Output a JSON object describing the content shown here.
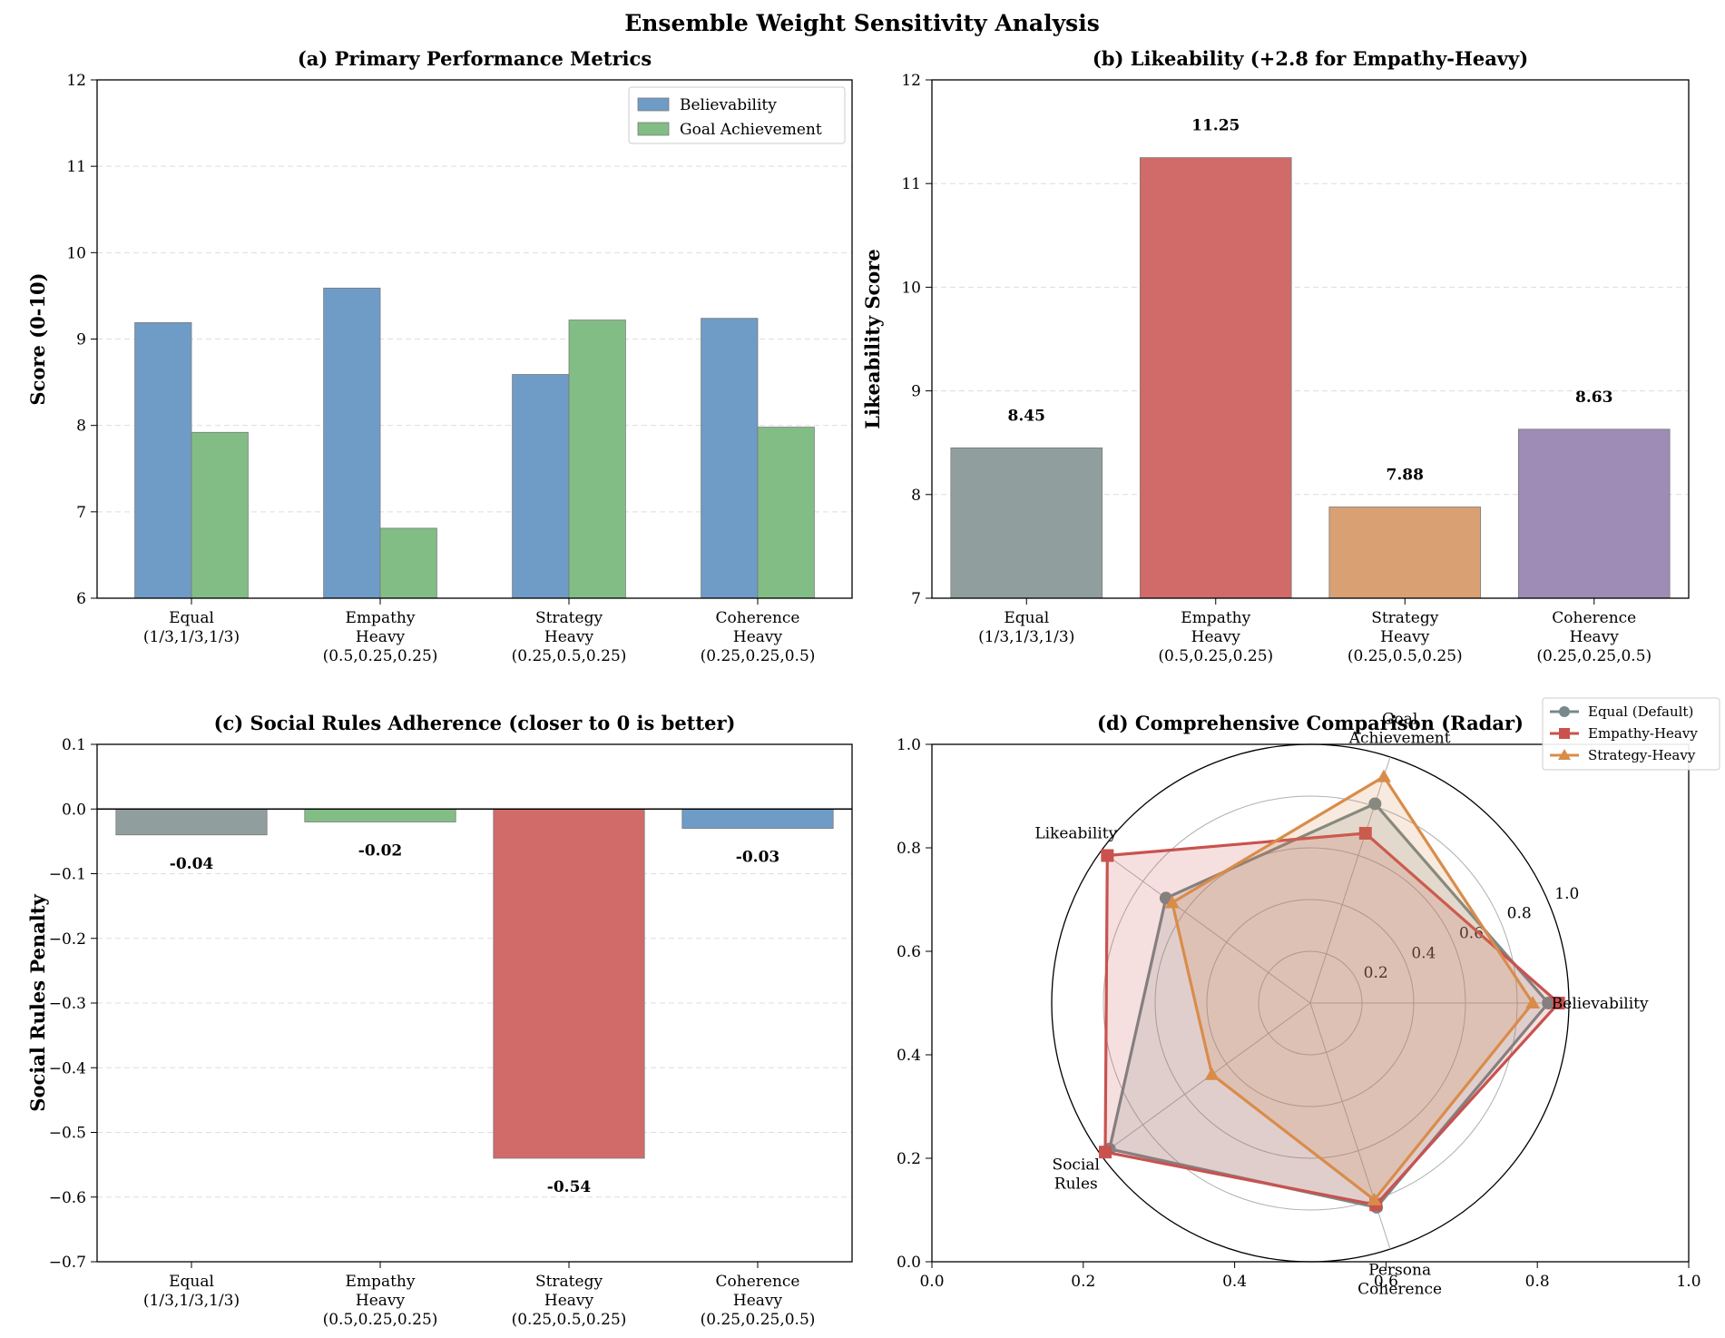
{
  "figure_title": "Ensemble Weight Sensitivity Analysis",
  "colors": {
    "blue": "#6f9bc7",
    "green": "#82bd85",
    "gray": "#909f9e",
    "red": "#d06b69",
    "orange": "#d9a074",
    "purple": "#9e8cb6",
    "radar_gray": "#77898a",
    "radar_red": "#c9524f",
    "radar_orange": "#d98c4a",
    "grid": "#dddddd"
  },
  "chart_data": [
    {
      "id": "a",
      "type": "bar",
      "title": "(a) Primary Performance Metrics",
      "xlabel": "",
      "ylabel": "Score (0-10)",
      "ylim": [
        6,
        12
      ],
      "yticks": [
        6,
        7,
        8,
        9,
        10,
        11,
        12
      ],
      "ytick_labels": [
        "6",
        "7",
        "8",
        "9",
        "10",
        "11",
        "12"
      ],
      "grid": true,
      "legend": "top-right",
      "categories": [
        [
          "Equal",
          "(1/3,1/3,1/3)"
        ],
        [
          "Empathy",
          "Heavy",
          "(0.5,0.25,0.25)"
        ],
        [
          "Strategy",
          "Heavy",
          "(0.25,0.5,0.25)"
        ],
        [
          "Coherence",
          "Heavy",
          "(0.25,0.25,0.5)"
        ]
      ],
      "series": [
        {
          "name": "Believability",
          "color": "blue",
          "values": [
            9.19,
            9.59,
            8.59,
            9.24
          ]
        },
        {
          "name": "Goal Achievement",
          "color": "green",
          "values": [
            7.92,
            6.81,
            9.22,
            7.98
          ]
        }
      ]
    },
    {
      "id": "b",
      "type": "bar",
      "title": "(b) Likeability (+2.8 for Empathy-Heavy)",
      "xlabel": "",
      "ylabel": "Likeability Score",
      "ylim": [
        7,
        12
      ],
      "yticks": [
        7,
        8,
        9,
        10,
        11,
        12
      ],
      "ytick_labels": [
        "7",
        "8",
        "9",
        "10",
        "11",
        "12"
      ],
      "grid": true,
      "categories": [
        [
          "Equal",
          "(1/3,1/3,1/3)"
        ],
        [
          "Empathy",
          "Heavy",
          "(0.5,0.25,0.25)"
        ],
        [
          "Strategy",
          "Heavy",
          "(0.25,0.5,0.25)"
        ],
        [
          "Coherence",
          "Heavy",
          "(0.25,0.25,0.5)"
        ]
      ],
      "values": [
        8.45,
        11.25,
        7.88,
        8.63
      ],
      "value_labels": [
        "8.45",
        "11.25",
        "7.88",
        "8.63"
      ],
      "bar_colors": [
        "gray",
        "red",
        "orange",
        "purple"
      ]
    },
    {
      "id": "c",
      "type": "bar",
      "title": "(c) Social Rules Adherence (closer to 0 is better)",
      "xlabel": "",
      "ylabel": "Social Rules Penalty",
      "ylim": [
        -0.7,
        0.1
      ],
      "yticks": [
        -0.7,
        -0.6,
        -0.5,
        -0.4,
        -0.3,
        -0.2,
        -0.1,
        0.0,
        0.1
      ],
      "ytick_labels": [
        "−0.7",
        "−0.6",
        "−0.5",
        "−0.4",
        "−0.3",
        "−0.2",
        "−0.1",
        "0.0",
        "0.1"
      ],
      "grid": true,
      "categories": [
        [
          "Equal",
          "(1/3,1/3,1/3)"
        ],
        [
          "Empathy",
          "Heavy",
          "(0.5,0.25,0.25)"
        ],
        [
          "Strategy",
          "Heavy",
          "(0.25,0.5,0.25)"
        ],
        [
          "Coherence",
          "Heavy",
          "(0.25,0.25,0.5)"
        ]
      ],
      "values": [
        -0.04,
        -0.02,
        -0.54,
        -0.03
      ],
      "value_labels": [
        "-0.04",
        "-0.02",
        "-0.54",
        "-0.03"
      ],
      "bar_colors": [
        "gray",
        "green",
        "red",
        "blue"
      ]
    },
    {
      "id": "d",
      "type": "radar",
      "title": "(d) Comprehensive Comparison (Radar)",
      "legend": "top-right",
      "axes": [
        [
          "Believability"
        ],
        [
          "Goal",
          "Achievement"
        ],
        [
          "Likeability"
        ],
        [
          "Social",
          "Rules"
        ],
        [
          "Persona",
          "Coherence"
        ]
      ],
      "rlim": [
        0,
        1.0
      ],
      "rticks": [
        0.2,
        0.4,
        0.6,
        0.8,
        1.0
      ],
      "rtick_labels": [
        "0.2",
        "0.4",
        "0.6",
        "0.8",
        "1.0"
      ],
      "frame_ticks": {
        "x": [
          0.0,
          0.2,
          0.4,
          0.6,
          0.8,
          1.0
        ],
        "x_labels": [
          "0.0",
          "0.2",
          "0.4",
          "0.6",
          "0.8",
          "1.0"
        ],
        "y": [
          0.0,
          0.2,
          0.4,
          0.6,
          0.8,
          1.0
        ],
        "y_labels": [
          "0.0",
          "0.2",
          "0.4",
          "0.6",
          "0.8",
          "1.0"
        ]
      },
      "series": [
        {
          "name": "Equal (Default)",
          "color": "radar_gray",
          "marker": "circle",
          "values": [
            0.92,
            0.81,
            0.69,
            0.96,
            0.83
          ]
        },
        {
          "name": "Empathy-Heavy",
          "color": "radar_red",
          "marker": "square",
          "values": [
            0.96,
            0.69,
            0.97,
            0.98,
            0.82
          ]
        },
        {
          "name": "Strategy-Heavy",
          "color": "radar_orange",
          "marker": "triangle",
          "values": [
            0.86,
            0.92,
            0.66,
            0.47,
            0.8
          ]
        }
      ]
    }
  ]
}
